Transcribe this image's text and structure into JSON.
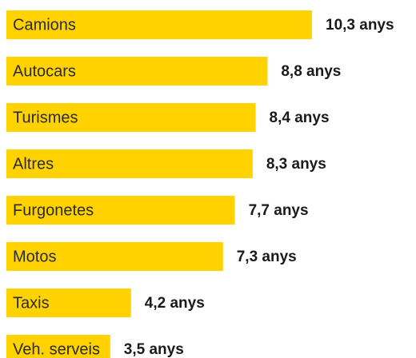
{
  "chart_data": {
    "type": "bar",
    "orientation": "horizontal",
    "categories": [
      "Camions",
      "Autocars",
      "Turismes",
      "Altres",
      "Furgonetes",
      "Motos",
      "Taxis",
      "Veh. serveis"
    ],
    "values": [
      10.3,
      8.8,
      8.4,
      8.3,
      7.7,
      7.3,
      4.2,
      3.5
    ],
    "value_labels": [
      "10,3 anys",
      "8,8 anys",
      "8,4 anys",
      "8,3 anys",
      "7,7 anys",
      "7,3 anys",
      "4,2 anys",
      "3,5 anys"
    ],
    "color": "#ffd200"
  }
}
